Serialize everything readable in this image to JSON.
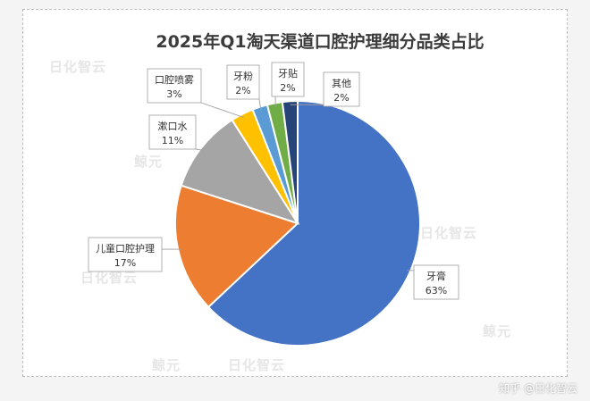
{
  "chart_data": {
    "type": "pie",
    "title": "2025年Q1淘天渠道口腔护理细分品类占比",
    "slices": [
      {
        "label": "牙膏",
        "value": 63,
        "pct": "63%",
        "color": "#4472c4"
      },
      {
        "label": "儿童口腔护理",
        "value": 17,
        "pct": "17%",
        "color": "#ed7d31"
      },
      {
        "label": "漱口水",
        "value": 11,
        "pct": "11%",
        "color": "#a5a5a5"
      },
      {
        "label": "口腔喷雾",
        "value": 3,
        "pct": "3%",
        "color": "#ffc000"
      },
      {
        "label": "牙粉",
        "value": 2,
        "pct": "2%",
        "color": "#5b9bd5"
      },
      {
        "label": "牙贴",
        "value": 2,
        "pct": "2%",
        "color": "#70ad47"
      },
      {
        "label": "其他",
        "value": 2,
        "pct": "2%",
        "color": "#264478"
      }
    ],
    "start": "12 o'clock",
    "direction": "clockwise"
  },
  "watermarks": [
    "日化智云",
    "鲸元"
  ],
  "footer": "知乎 @日化智云"
}
